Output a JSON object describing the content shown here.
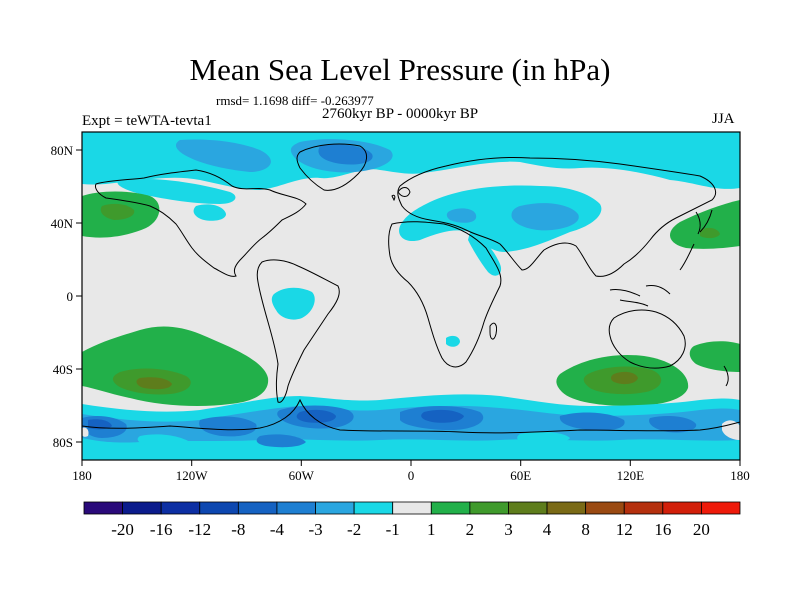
{
  "title": "Mean Sea Level Pressure (in hPa)",
  "stats": "rmsd= 1.1698 diff= -0.263977",
  "period": "2760kyr BP - 0000kyr BP",
  "experiment": "Expt = teWTA-tevta1",
  "season": "JJA",
  "axes": {
    "x_ticks": [
      "180",
      "120W",
      "60W",
      "0",
      "60E",
      "120E",
      "180"
    ],
    "y_ticks": [
      "80N",
      "40N",
      "0",
      "40S",
      "80S"
    ]
  },
  "colorbar": {
    "labels": [
      "-20",
      "-16",
      "-12",
      "-8",
      "-4",
      "-3",
      "-2",
      "-1",
      "1",
      "2",
      "3",
      "4",
      "8",
      "12",
      "16",
      "20"
    ],
    "colors": [
      "#2a0a7a",
      "#0b1b8c",
      "#0d2fa3",
      "#0d47b0",
      "#1562c2",
      "#1e7fd2",
      "#2aa6e0",
      "#1ad8e6",
      "#e8e8e8",
      "#22b04a",
      "#3f9a2c",
      "#5e7d1c",
      "#7a6a16",
      "#9a4a12",
      "#b5300e",
      "#d21f0a",
      "#ee1a0a"
    ]
  },
  "colors": {
    "neutral": "#e8e8e8",
    "cyan": "#1ad8e6",
    "lightblue": "#2aa6e0",
    "blue": "#1e7fd2",
    "deepblue": "#1562c2",
    "navy": "#0d47b0",
    "green": "#22b04a",
    "darkgreen": "#3f9a2c",
    "olive": "#5e7d1c"
  }
}
